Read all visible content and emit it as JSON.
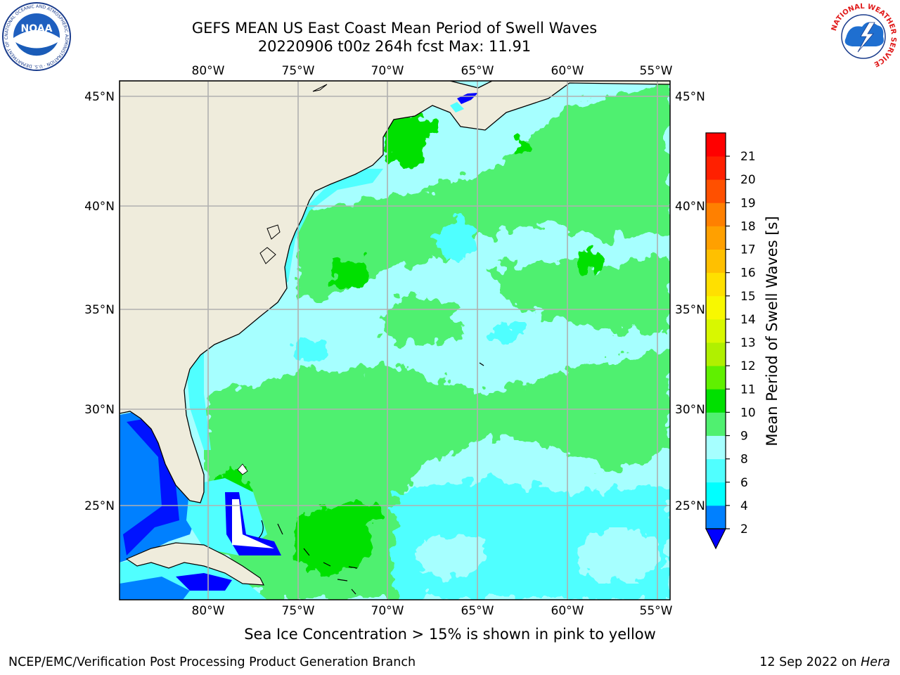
{
  "title": {
    "line1": "GEFS MEAN US East Coast Mean Period of Swell Waves",
    "line2": "20220906 t00z 264h fcst   Max: 11.91"
  },
  "map": {
    "lon_labels": [
      "80°W",
      "75°W",
      "70°W",
      "65°W",
      "60°W",
      "55°W"
    ],
    "lat_labels": [
      "45°N",
      "40°N",
      "35°N",
      "30°N",
      "25°N"
    ],
    "land_color": "#efecdc",
    "ocean_base_color": "#a6ffff",
    "gridline_color": "#b0b0b0"
  },
  "colorbar": {
    "label": "Mean Period of Swell Waves [s]",
    "tick_labels": [
      "2",
      "4",
      "6",
      "8",
      "9",
      "10",
      "11",
      "12",
      "13",
      "14",
      "15",
      "16",
      "17",
      "18",
      "19",
      "20",
      "21"
    ],
    "colors": [
      "#0080ff",
      "#00ffff",
      "#50ffff",
      "#a6ffff",
      "#50f070",
      "#00e000",
      "#60f000",
      "#b0f000",
      "#d8f800",
      "#f8f800",
      "#ffe000",
      "#ffc000",
      "#ffa000",
      "#ff8000",
      "#ff5000",
      "#ff2000",
      "#ff0000"
    ],
    "under_color": "#0000ff"
  },
  "sea_ice_note": "Sea Ice Concentration > 15% is shown in pink to yellow",
  "footer": {
    "left": "NCEP/EMC/Verification Post Processing Product Generation Branch",
    "date": "12 Sep 2022 on ",
    "machine": "Hera"
  },
  "logos": {
    "noaa": "NOAA",
    "noaa_ring": "NATIONAL OCEANIC AND ATMOSPHERIC ADMINISTRATION · U.S. DEPARTMENT OF COMMERCE",
    "nws": "NATIONAL WEATHER SERVICE"
  }
}
